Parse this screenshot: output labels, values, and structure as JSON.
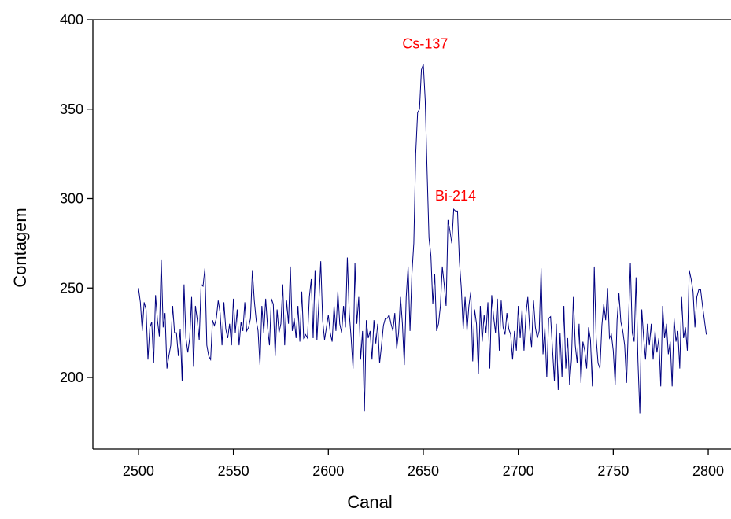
{
  "chart_data": {
    "type": "line",
    "x_label": "Canal",
    "y_label": "Contagem",
    "xlim": [
      2476,
      2812
    ],
    "ylim": [
      160,
      400
    ],
    "xticks": [
      2500,
      2550,
      2600,
      2650,
      2700,
      2750,
      2800
    ],
    "yticks": [
      200,
      250,
      300,
      350,
      400
    ],
    "annotations": [
      {
        "text": "Cs-137",
        "x": 2651,
        "y": 384,
        "color": "#ff0000"
      },
      {
        "text": "Bi-214",
        "x": 2667,
        "y": 299,
        "color": "#ff0000"
      }
    ],
    "x": [
      2500,
      2501,
      2502,
      2503,
      2504,
      2505,
      2506,
      2507,
      2508,
      2509,
      2510,
      2511,
      2512,
      2513,
      2514,
      2515,
      2516,
      2517,
      2518,
      2519,
      2520,
      2521,
      2522,
      2523,
      2524,
      2525,
      2526,
      2527,
      2528,
      2529,
      2530,
      2531,
      2532,
      2533,
      2534,
      2535,
      2536,
      2537,
      2538,
      2539,
      2540,
      2541,
      2542,
      2543,
      2544,
      2545,
      2546,
      2547,
      2548,
      2549,
      2550,
      2551,
      2552,
      2553,
      2554,
      2555,
      2556,
      2557,
      2558,
      2559,
      2560,
      2561,
      2562,
      2563,
      2564,
      2565,
      2566,
      2567,
      2568,
      2569,
      2570,
      2571,
      2572,
      2573,
      2574,
      2575,
      2576,
      2577,
      2578,
      2579,
      2580,
      2581,
      2582,
      2583,
      2584,
      2585,
      2586,
      2587,
      2588,
      2589,
      2590,
      2591,
      2592,
      2593,
      2594,
      2595,
      2596,
      2597,
      2598,
      2599,
      2600,
      2601,
      2602,
      2603,
      2604,
      2605,
      2606,
      2607,
      2608,
      2609,
      2610,
      2611,
      2612,
      2613,
      2614,
      2615,
      2616,
      2617,
      2618,
      2619,
      2620,
      2621,
      2622,
      2623,
      2624,
      2625,
      2626,
      2627,
      2628,
      2629,
      2630,
      2631,
      2632,
      2633,
      2634,
      2635,
      2636,
      2637,
      2638,
      2639,
      2640,
      2641,
      2642,
      2643,
      2644,
      2645,
      2646,
      2647,
      2648,
      2649,
      2650,
      2651,
      2652,
      2653,
      2654,
      2655,
      2656,
      2657,
      2658,
      2659,
      2660,
      2661,
      2662,
      2663,
      2664,
      2665,
      2666,
      2667,
      2668,
      2669,
      2670,
      2671,
      2672,
      2673,
      2674,
      2675,
      2676,
      2677,
      2678,
      2679,
      2680,
      2681,
      2682,
      2683,
      2684,
      2685,
      2686,
      2687,
      2688,
      2689,
      2690,
      2691,
      2692,
      2693,
      2694,
      2695,
      2696,
      2697,
      2698,
      2699,
      2700,
      2701,
      2702,
      2703,
      2704,
      2705,
      2706,
      2707,
      2708,
      2709,
      2710,
      2711,
      2712,
      2713,
      2714,
      2715,
      2716,
      2717,
      2718,
      2719,
      2720,
      2721,
      2722,
      2723,
      2724,
      2725,
      2726,
      2727,
      2728,
      2729,
      2730,
      2731,
      2732,
      2733,
      2734,
      2735,
      2736,
      2737,
      2738,
      2739,
      2740,
      2741,
      2742,
      2743,
      2744,
      2745,
      2746,
      2747,
      2748,
      2749,
      2750,
      2751,
      2752,
      2753,
      2754,
      2755,
      2756,
      2757,
      2758,
      2759,
      2760,
      2761,
      2762,
      2763,
      2764,
      2765,
      2766,
      2767,
      2768,
      2769,
      2770,
      2771,
      2772,
      2773,
      2774,
      2775,
      2776,
      2777,
      2778,
      2779,
      2780,
      2781,
      2782,
      2783,
      2784,
      2785,
      2786,
      2787,
      2788,
      2789,
      2790,
      2791,
      2792,
      2793,
      2794,
      2795,
      2796,
      2797,
      2798,
      2799
    ],
    "series": [
      {
        "color": "#000080",
        "values": [
          250,
          242,
          226,
          242,
          238,
          210,
          228,
          231,
          208,
          246,
          232,
          223,
          266,
          228,
          236,
          205,
          212,
          218,
          240,
          225,
          225,
          212,
          227,
          198,
          252,
          222,
          214,
          222,
          245,
          206,
          240,
          232,
          221,
          252,
          251,
          261,
          218,
          212,
          210,
          232,
          229,
          233,
          243,
          236,
          218,
          242,
          227,
          222,
          230,
          218,
          244,
          225,
          238,
          218,
          231,
          226,
          242,
          226,
          228,
          233,
          260,
          243,
          232,
          226,
          207,
          240,
          225,
          244,
          228,
          218,
          244,
          241,
          212,
          238,
          225,
          230,
          252,
          218,
          243,
          230,
          262,
          226,
          233,
          222,
          240,
          220,
          248,
          222,
          224,
          222,
          245,
          255,
          222,
          260,
          221,
          242,
          265,
          232,
          221,
          228,
          235,
          225,
          220,
          240,
          226,
          248,
          230,
          225,
          240,
          228,
          267,
          236,
          222,
          205,
          264,
          230,
          245,
          210,
          226,
          181,
          232,
          222,
          226,
          210,
          232,
          219,
          230,
          208,
          218,
          229,
          233,
          233,
          235,
          230,
          226,
          236,
          216,
          225,
          245,
          230,
          207,
          245,
          262,
          226,
          258,
          275,
          325,
          348,
          350,
          372,
          375,
          355,
          315,
          278,
          268,
          241,
          258,
          226,
          230,
          240,
          262,
          252,
          240,
          288,
          282,
          275,
          294,
          293,
          293,
          265,
          250,
          227,
          245,
          226,
          240,
          248,
          209,
          238,
          230,
          202,
          240,
          220,
          235,
          225,
          242,
          205,
          246,
          234,
          225,
          244,
          215,
          243,
          228,
          224,
          236,
          227,
          224,
          210,
          226,
          215,
          240,
          222,
          238,
          215,
          235,
          245,
          227,
          217,
          243,
          228,
          222,
          226,
          261,
          213,
          228,
          200,
          233,
          234,
          216,
          198,
          230,
          193,
          225,
          200,
          240,
          205,
          222,
          196,
          210,
          245,
          218,
          208,
          230,
          197,
          220,
          215,
          205,
          228,
          221,
          195,
          262,
          222,
          208,
          205,
          229,
          241,
          232,
          250,
          222,
          224,
          215,
          196,
          232,
          247,
          231,
          226,
          218,
          197,
          230,
          264,
          225,
          220,
          256,
          209,
          180,
          238,
          222,
          210,
          230,
          218,
          230,
          210,
          226,
          214,
          222,
          195,
          240,
          222,
          230,
          213,
          220,
          195,
          233,
          220,
          226,
          205,
          245,
          222,
          228,
          215,
          260,
          255,
          248,
          228,
          245,
          249,
          249,
          240,
          232,
          224
        ]
      }
    ]
  }
}
